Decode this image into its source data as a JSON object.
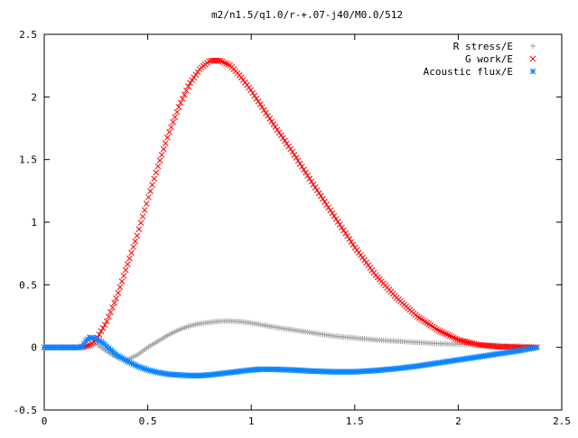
{
  "chart_data": {
    "type": "scatter",
    "title": "m2/n1.5/q1.0/r-+.07-j40/M0.0/512",
    "xlabel": "",
    "ylabel": "",
    "xlim": [
      0,
      2.5
    ],
    "ylim": [
      -0.5,
      2.5
    ],
    "xticks": [
      0,
      0.5,
      1,
      1.5,
      2,
      2.5
    ],
    "xtick_labels": [
      "0",
      "0.5",
      "1",
      "1.5",
      "2",
      "2.5"
    ],
    "yticks": [
      -0.5,
      0,
      0.5,
      1,
      1.5,
      2,
      2.5
    ],
    "ytick_labels": [
      "-0.5",
      "0",
      "0.5",
      "1",
      "1.5",
      "2",
      "2.5"
    ],
    "grid": false,
    "legend_position": "top-right",
    "series": [
      {
        "name": "R stress/E",
        "marker": "plus",
        "color": "#a0a0a0",
        "x": [
          0.0,
          0.1,
          0.2,
          0.25,
          0.3,
          0.35,
          0.4,
          0.45,
          0.5,
          0.55,
          0.6,
          0.65,
          0.7,
          0.75,
          0.8,
          0.85,
          0.9,
          0.95,
          1.0,
          1.05,
          1.1,
          1.2,
          1.3,
          1.4,
          1.5,
          1.6,
          1.7,
          1.8,
          1.9,
          2.0,
          2.1,
          2.2,
          2.3,
          2.38
        ],
        "y": [
          0.0,
          0.0,
          0.0,
          0.03,
          -0.03,
          -0.08,
          -0.1,
          -0.06,
          0.0,
          0.05,
          0.1,
          0.14,
          0.17,
          0.19,
          0.2,
          0.21,
          0.21,
          0.205,
          0.195,
          0.18,
          0.165,
          0.14,
          0.115,
          0.09,
          0.075,
          0.06,
          0.05,
          0.04,
          0.03,
          0.025,
          0.02,
          0.015,
          0.01,
          0.0
        ]
      },
      {
        "name": "G work/E",
        "marker": "cross",
        "color": "#ff0000",
        "x": [
          0.0,
          0.1,
          0.18,
          0.22,
          0.25,
          0.3,
          0.35,
          0.4,
          0.45,
          0.5,
          0.55,
          0.6,
          0.65,
          0.7,
          0.75,
          0.8,
          0.85,
          0.9,
          0.95,
          1.0,
          1.1,
          1.2,
          1.3,
          1.4,
          1.5,
          1.6,
          1.7,
          1.8,
          1.9,
          2.0,
          2.1,
          2.2,
          2.3,
          2.38
        ],
        "y": [
          0.0,
          0.0,
          0.0,
          0.02,
          0.06,
          0.2,
          0.4,
          0.65,
          0.9,
          1.18,
          1.45,
          1.7,
          1.92,
          2.1,
          2.22,
          2.29,
          2.29,
          2.25,
          2.16,
          2.05,
          1.8,
          1.56,
          1.3,
          1.05,
          0.8,
          0.58,
          0.4,
          0.25,
          0.14,
          0.06,
          0.02,
          0.005,
          0.0,
          0.0
        ]
      },
      {
        "name": "Acoustic flux/E",
        "marker": "star",
        "color": "#0a84ff",
        "x": [
          0.0,
          0.1,
          0.18,
          0.2,
          0.22,
          0.25,
          0.28,
          0.3,
          0.35,
          0.4,
          0.45,
          0.5,
          0.55,
          0.6,
          0.65,
          0.7,
          0.75,
          0.8,
          0.85,
          0.9,
          0.95,
          1.0,
          1.05,
          1.1,
          1.2,
          1.3,
          1.4,
          1.5,
          1.6,
          1.7,
          1.8,
          1.9,
          2.0,
          2.1,
          2.2,
          2.3,
          2.38
        ],
        "y": [
          0.0,
          0.0,
          0.0,
          0.05,
          0.08,
          0.07,
          0.04,
          0.01,
          -0.06,
          -0.11,
          -0.15,
          -0.18,
          -0.2,
          -0.215,
          -0.22,
          -0.225,
          -0.225,
          -0.22,
          -0.21,
          -0.2,
          -0.19,
          -0.18,
          -0.175,
          -0.175,
          -0.18,
          -0.19,
          -0.195,
          -0.195,
          -0.185,
          -0.17,
          -0.15,
          -0.125,
          -0.1,
          -0.075,
          -0.05,
          -0.025,
          0.0
        ]
      }
    ]
  }
}
